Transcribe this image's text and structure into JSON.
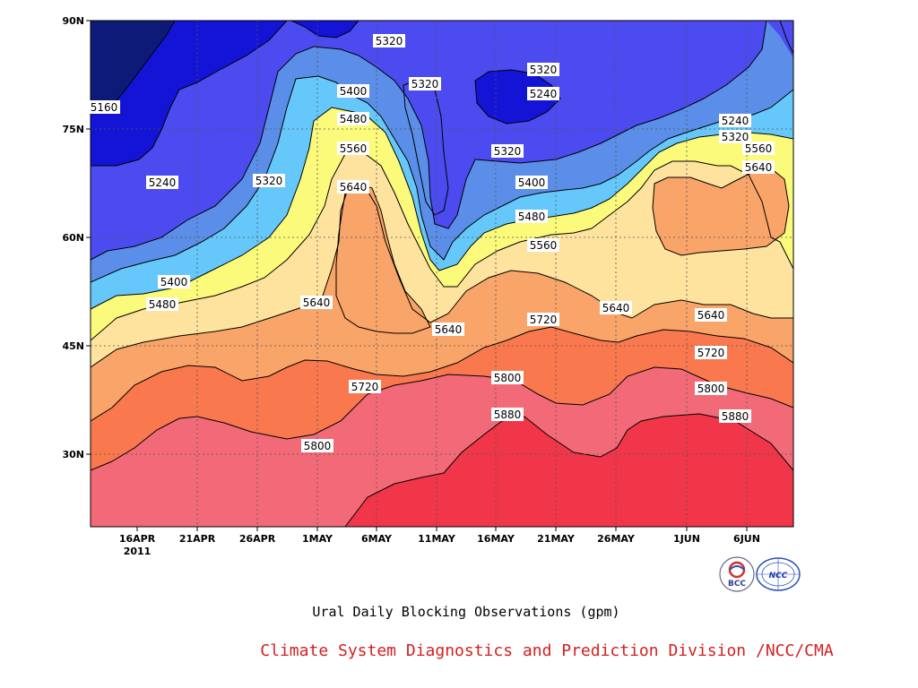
{
  "chart_data": {
    "type": "heatmap",
    "title": "Ural Daily Blocking Observations (gpm)",
    "credit": "Climate System Diagnostics and Prediction Division /NCC/CMA",
    "x_axis": {
      "year_label": "2011",
      "ticks": [
        "16APR",
        "21APR",
        "26APR",
        "1MAY",
        "6MAY",
        "11MAY",
        "16MAY",
        "21MAY",
        "26MAY",
        "1JUN",
        "6JUN"
      ]
    },
    "y_axis": {
      "ticks": [
        "30N",
        "45N",
        "60N",
        "75N",
        "90N"
      ]
    },
    "grid": true,
    "contour_levels": [
      5160,
      5240,
      5320,
      5400,
      5480,
      5560,
      5640,
      5720,
      5800,
      5880
    ],
    "level_colors": [
      "#0d1a78",
      "#1414d6",
      "#4b4bef",
      "#5a8ee8",
      "#66c8fa",
      "#fbfa7a",
      "#fde39e",
      "#f9a468",
      "#f9784e",
      "#f26a78",
      "#f03648"
    ],
    "contour_labels": [
      {
        "text": "5160"
      },
      {
        "text": "5240"
      },
      {
        "text": "5320"
      },
      {
        "text": "5320"
      },
      {
        "text": "5320"
      },
      {
        "text": "5320"
      },
      {
        "text": "5240"
      },
      {
        "text": "5400"
      },
      {
        "text": "5480"
      },
      {
        "text": "5560"
      },
      {
        "text": "5640"
      },
      {
        "text": "5320"
      },
      {
        "text": "5400"
      },
      {
        "text": "5480"
      },
      {
        "text": "5560"
      },
      {
        "text": "5640"
      },
      {
        "text": "5240"
      },
      {
        "text": "5320"
      },
      {
        "text": "5400"
      },
      {
        "text": "5480"
      },
      {
        "text": "5640"
      },
      {
        "text": "5640"
      },
      {
        "text": "5720"
      },
      {
        "text": "5640"
      },
      {
        "text": "5640"
      },
      {
        "text": "5720"
      },
      {
        "text": "5720"
      },
      {
        "text": "5800"
      },
      {
        "text": "5800"
      },
      {
        "text": "5800"
      },
      {
        "text": "5880"
      },
      {
        "text": "5880"
      },
      {
        "text": "5400"
      },
      {
        "text": "5480"
      },
      {
        "text": "5560"
      },
      {
        "text": "5640"
      }
    ],
    "logos": [
      {
        "name": "bcc-logo",
        "text": "BCC"
      },
      {
        "name": "ncc-logo",
        "text": "NCC"
      }
    ]
  }
}
